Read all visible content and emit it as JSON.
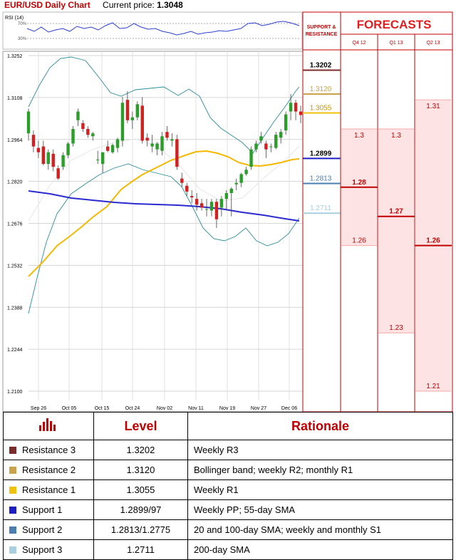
{
  "header": {
    "title": "EUR/USD Daily Chart",
    "price_label": "Current price:",
    "price_value": "1.3048"
  },
  "chart_data": {
    "type": "candlestick",
    "rsi": {
      "label": "RSI (14)",
      "levels": [
        "70%",
        "30%"
      ]
    },
    "y_ticks": [
      "1.3252",
      "1.3108",
      "1.2964",
      "1.2820",
      "1.2676",
      "1.2532",
      "1.2388",
      "1.2244",
      "1.2100"
    ],
    "x_ticks": [
      "Sep 26",
      "Oct 05",
      "Oct 15",
      "Oct 24",
      "Nov 02",
      "Nov 11",
      "Nov 19",
      "Nov 27",
      "Dec 06"
    ],
    "ylim": [
      1.21,
      1.3252
    ],
    "candles": [
      [
        1.2985,
        1.307,
        1.296,
        1.306
      ],
      [
        1.298,
        1.2995,
        1.292,
        1.294
      ],
      [
        1.2935,
        1.296,
        1.29,
        1.292
      ],
      [
        1.294,
        1.296,
        1.2875,
        1.288
      ],
      [
        1.288,
        1.293,
        1.286,
        1.292
      ],
      [
        1.2915,
        1.293,
        1.2855,
        1.287
      ],
      [
        1.2865,
        1.2875,
        1.2825,
        1.283
      ],
      [
        1.287,
        1.292,
        1.286,
        1.291
      ],
      [
        1.291,
        1.2955,
        1.29,
        1.295
      ],
      [
        1.295,
        1.301,
        1.294,
        1.3
      ],
      [
        1.303,
        1.307,
        1.301,
        1.306
      ],
      [
        1.302,
        1.303,
        1.299,
        1.3
      ],
      [
        1.3,
        1.301,
        1.297,
        1.298
      ],
      [
        1.2975,
        1.299,
        1.296,
        1.2985
      ],
      [
        1.2895,
        1.2925,
        1.288,
        1.2895
      ],
      [
        1.288,
        1.292,
        1.285,
        1.292
      ],
      [
        1.294,
        1.296,
        1.292,
        1.2925
      ],
      [
        1.292,
        1.295,
        1.2915,
        1.2945
      ],
      [
        1.2935,
        1.297,
        1.292,
        1.2965
      ],
      [
        1.296,
        1.311,
        1.294,
        1.309
      ],
      [
        1.31,
        1.313,
        1.302,
        1.303
      ],
      [
        1.303,
        1.306,
        1.3,
        1.304
      ],
      [
        1.304,
        1.3095,
        1.303,
        1.3085
      ],
      [
        1.308,
        1.311,
        1.295,
        1.296
      ],
      [
        1.297,
        1.2985,
        1.294,
        1.296
      ],
      [
        1.294,
        1.298,
        1.292,
        1.295
      ],
      [
        1.293,
        1.2955,
        1.291,
        1.295
      ],
      [
        1.2925,
        1.299,
        1.291,
        1.2975
      ],
      [
        1.299,
        1.301,
        1.296,
        1.297
      ],
      [
        1.296,
        1.2985,
        1.294,
        1.2965
      ],
      [
        1.2965,
        1.298,
        1.286,
        1.287
      ],
      [
        1.283,
        1.285,
        1.28,
        1.2815
      ],
      [
        1.2805,
        1.2815,
        1.277,
        1.2785
      ],
      [
        1.277,
        1.279,
        1.2745,
        1.2765
      ],
      [
        1.276,
        1.278,
        1.272,
        1.274
      ],
      [
        1.2745,
        1.276,
        1.272,
        1.273
      ],
      [
        1.2725,
        1.276,
        1.27,
        1.2725
      ],
      [
        1.272,
        1.276,
        1.27,
        1.275
      ],
      [
        1.275,
        1.276,
        1.266,
        1.269
      ],
      [
        1.273,
        1.277,
        1.27,
        1.276
      ],
      [
        1.276,
        1.279,
        1.272,
        1.278
      ],
      [
        1.278,
        1.28,
        1.27,
        1.2795
      ],
      [
        1.281,
        1.283,
        1.279,
        1.2815
      ],
      [
        1.2815,
        1.285,
        1.28,
        1.2845
      ],
      [
        1.2845,
        1.287,
        1.284,
        1.286
      ],
      [
        1.287,
        1.294,
        1.286,
        1.293
      ],
      [
        1.293,
        1.296,
        1.292,
        1.295
      ],
      [
        1.296,
        1.299,
        1.295,
        1.2975
      ],
      [
        1.295,
        1.296,
        1.29,
        1.293
      ],
      [
        1.294,
        1.295,
        1.292,
        1.294
      ],
      [
        1.2935,
        1.299,
        1.293,
        1.298
      ],
      [
        1.297,
        1.3,
        1.295,
        1.299
      ],
      [
        1.2995,
        1.306,
        1.298,
        1.305
      ],
      [
        1.306,
        1.312,
        1.303,
        1.309
      ],
      [
        1.309,
        1.31,
        1.303,
        1.306
      ],
      [
        1.306,
        1.308,
        1.302,
        1.3048
      ]
    ],
    "support_resistance": {
      "header": "SUPPORT & RESISTANCE",
      "levels": [
        {
          "label": "1.3202",
          "color": "#7b2b2b"
        },
        {
          "label": "1.3120",
          "color": "#c9a24a"
        },
        {
          "label": "1.3055",
          "color": "#f0c20a"
        },
        {
          "label": "1.2899",
          "color": "#1d1dc4"
        },
        {
          "label": "1.2813",
          "color": "#4a7fb0"
        },
        {
          "label": "1.2711",
          "color": "#a8cfe0"
        }
      ]
    },
    "forecasts": {
      "title": "FORECASTS",
      "columns": [
        {
          "label": "Q4 12",
          "high": "1.3",
          "mid": "1.28",
          "low": "1.26"
        },
        {
          "label": "Q1 13",
          "high": "1.3",
          "mid": "1.27",
          "low": "1.23"
        },
        {
          "label": "Q2 13",
          "high": "1.31",
          "mid": "1.26",
          "low": "1.21"
        }
      ]
    }
  },
  "table": {
    "headers": {
      "level": "Level",
      "rationale": "Rationale"
    },
    "rows": [
      {
        "name": "Resistance 3",
        "color": "#7b2b2b",
        "level": "1.3202",
        "rationale": "Weekly R3"
      },
      {
        "name": "Resistance 2",
        "color": "#c9a24a",
        "level": "1.3120",
        "rationale": "Bollinger band; weekly R2; monthly R1"
      },
      {
        "name": "Resistance 1",
        "color": "#f0c20a",
        "level": "1.3055",
        "rationale": "Weekly R1"
      },
      {
        "name": "Support 1",
        "color": "#1d1dc4",
        "level": "1.2899/97",
        "rationale": "Weekly PP; 55-day SMA"
      },
      {
        "name": "Support 2",
        "color": "#4a7fb0",
        "level": "1.2813/1.2775",
        "rationale": "20 and 100-day SMA; weekly and monthly S1"
      },
      {
        "name": "Support 3",
        "color": "#a8cfe0",
        "level": "1.2711",
        "rationale": "200-day SMA"
      }
    ]
  }
}
